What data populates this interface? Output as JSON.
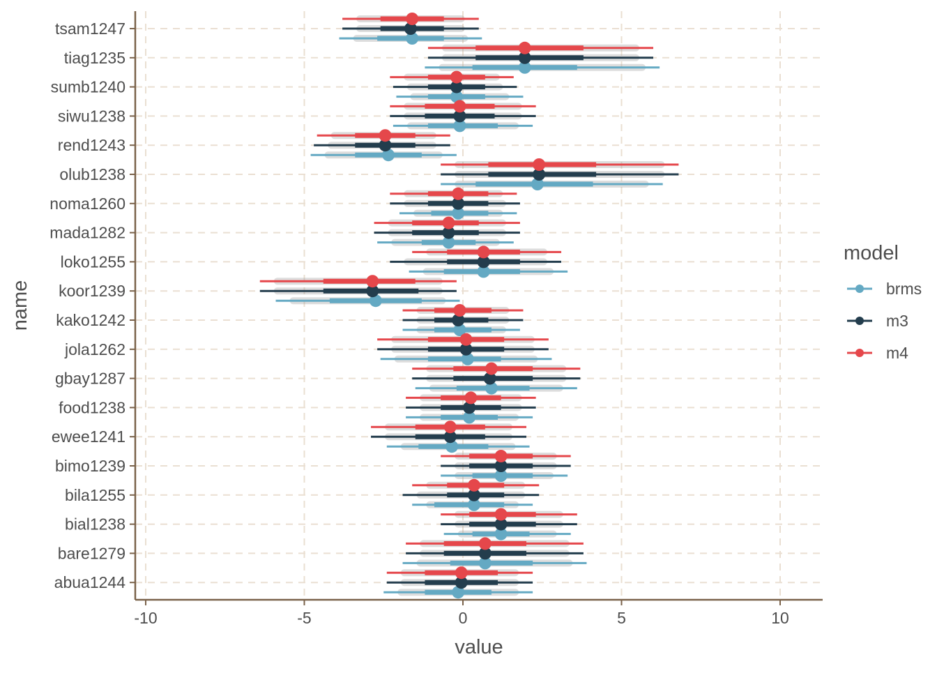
{
  "chart_data": {
    "type": "scatter",
    "xlabel": "value",
    "ylabel": "name",
    "xlim": [
      -10.4,
      11.4
    ],
    "x_ticks": [
      -10,
      -5,
      0,
      5,
      10
    ],
    "x_tick_labels": [
      "-10",
      "-5",
      "0",
      "5",
      "10"
    ],
    "categories": [
      "tsam1247",
      "tiag1235",
      "sumb1240",
      "siwu1238",
      "rend1243",
      "olub1238",
      "noma1260",
      "mada1282",
      "loko1255",
      "koor1239",
      "kako1242",
      "jola1262",
      "gbay1287",
      "food1238",
      "ewee1241",
      "bimo1239",
      "bila1255",
      "bial1238",
      "bare1279",
      "abua1244"
    ],
    "grid": "major gridlines dashed",
    "legend": {
      "title": "model",
      "position": "right",
      "entries": [
        "brms",
        "m3",
        "m4"
      ]
    },
    "interval_note": "point estimate with thick (66%) and thin (95%) intervals per model",
    "series": [
      {
        "name": "brms",
        "color": "#64a9c3",
        "points": [
          {
            "category": "tsam1247",
            "estimate": -1.6,
            "inner": [
              -2.7,
              -0.6
            ],
            "outer": [
              -3.9,
              0.6
            ]
          },
          {
            "category": "tiag1235",
            "estimate": 1.95,
            "inner": [
              0.3,
              3.6
            ],
            "outer": [
              -1.2,
              6.2
            ]
          },
          {
            "category": "sumb1240",
            "estimate": -0.2,
            "inner": [
              -1.1,
              0.7
            ],
            "outer": [
              -2.1,
              1.9
            ]
          },
          {
            "category": "siwu1238",
            "estimate": -0.1,
            "inner": [
              -1.1,
              1.1
            ],
            "outer": [
              -2.2,
              2.2
            ]
          },
          {
            "category": "rend1243",
            "estimate": -2.35,
            "inner": [
              -3.4,
              -1.3
            ],
            "outer": [
              -4.8,
              -0.2
            ]
          },
          {
            "category": "olub1238",
            "estimate": 2.35,
            "inner": [
              0.4,
              4.1
            ],
            "outer": [
              -0.7,
              6.3
            ]
          },
          {
            "category": "noma1260",
            "estimate": -0.15,
            "inner": [
              -1.0,
              0.8
            ],
            "outer": [
              -2.0,
              1.7
            ]
          },
          {
            "category": "mada1282",
            "estimate": -0.45,
            "inner": [
              -1.3,
              0.4
            ],
            "outer": [
              -2.7,
              1.6
            ]
          },
          {
            "category": "loko1255",
            "estimate": 0.65,
            "inner": [
              -0.6,
              1.8
            ],
            "outer": [
              -1.7,
              3.3
            ]
          },
          {
            "category": "koor1239",
            "estimate": -2.75,
            "inner": [
              -4.2,
              -1.3
            ],
            "outer": [
              -5.9,
              -0.1
            ]
          },
          {
            "category": "kako1242",
            "estimate": -0.1,
            "inner": [
              -0.9,
              0.9
            ],
            "outer": [
              -1.9,
              1.8
            ]
          },
          {
            "category": "jola1262",
            "estimate": 0.15,
            "inner": [
              -1.1,
              1.2
            ],
            "outer": [
              -2.6,
              2.8
            ]
          },
          {
            "category": "gbay1287",
            "estimate": 0.9,
            "inner": [
              -0.2,
              2.1
            ],
            "outer": [
              -1.5,
              3.6
            ]
          },
          {
            "category": "food1238",
            "estimate": 0.2,
            "inner": [
              -0.7,
              1.1
            ],
            "outer": [
              -1.8,
              2.2
            ]
          },
          {
            "category": "ewee1241",
            "estimate": -0.35,
            "inner": [
              -1.4,
              0.8
            ],
            "outer": [
              -2.4,
              2.1
            ]
          },
          {
            "category": "bimo1239",
            "estimate": 1.2,
            "inner": [
              0.3,
              2.2
            ],
            "outer": [
              -0.7,
              3.3
            ]
          },
          {
            "category": "bila1255",
            "estimate": 0.35,
            "inner": [
              -0.9,
              1.3
            ],
            "outer": [
              -1.6,
              2.2
            ]
          },
          {
            "category": "bial1238",
            "estimate": 1.2,
            "inner": [
              0.3,
              2.1
            ],
            "outer": [
              -0.6,
              3.4
            ]
          },
          {
            "category": "bare1279",
            "estimate": 0.7,
            "inner": [
              -0.4,
              2.2
            ],
            "outer": [
              -1.9,
              3.9
            ]
          },
          {
            "category": "abua1244",
            "estimate": -0.15,
            "inner": [
              -1.2,
              0.9
            ],
            "outer": [
              -2.5,
              2.2
            ]
          }
        ]
      },
      {
        "name": "m3",
        "color": "#233d4d",
        "points": [
          {
            "category": "tsam1247",
            "estimate": -1.65,
            "inner": [
              -2.6,
              -0.6
            ],
            "outer": [
              -3.8,
              0.5
            ]
          },
          {
            "category": "tiag1235",
            "estimate": 1.95,
            "inner": [
              0.4,
              3.8
            ],
            "outer": [
              -1.1,
              6.0
            ]
          },
          {
            "category": "sumb1240",
            "estimate": -0.2,
            "inner": [
              -1.1,
              0.7
            ],
            "outer": [
              -2.2,
              1.7
            ]
          },
          {
            "category": "siwu1238",
            "estimate": -0.1,
            "inner": [
              -1.2,
              1.0
            ],
            "outer": [
              -2.3,
              2.3
            ]
          },
          {
            "category": "rend1243",
            "estimate": -2.45,
            "inner": [
              -3.4,
              -1.5
            ],
            "outer": [
              -4.7,
              -0.4
            ]
          },
          {
            "category": "olub1238",
            "estimate": 2.4,
            "inner": [
              0.8,
              4.2
            ],
            "outer": [
              -0.7,
              6.8
            ]
          },
          {
            "category": "noma1260",
            "estimate": -0.15,
            "inner": [
              -1.1,
              0.8
            ],
            "outer": [
              -2.3,
              1.8
            ]
          },
          {
            "category": "mada1282",
            "estimate": -0.45,
            "inner": [
              -1.6,
              0.5
            ],
            "outer": [
              -2.8,
              1.8
            ]
          },
          {
            "category": "loko1255",
            "estimate": 0.65,
            "inner": [
              -0.5,
              1.8
            ],
            "outer": [
              -2.3,
              3.1
            ]
          },
          {
            "category": "koor1239",
            "estimate": -2.85,
            "inner": [
              -4.4,
              -1.4
            ],
            "outer": [
              -6.4,
              -0.2
            ]
          },
          {
            "category": "kako1242",
            "estimate": -0.15,
            "inner": [
              -0.9,
              0.8
            ],
            "outer": [
              -1.9,
              1.9
            ]
          },
          {
            "category": "jola1262",
            "estimate": 0.1,
            "inner": [
              -1.1,
              1.3
            ],
            "outer": [
              -2.7,
              2.7
            ]
          },
          {
            "category": "gbay1287",
            "estimate": 0.85,
            "inner": [
              -0.3,
              2.2
            ],
            "outer": [
              -1.6,
              3.7
            ]
          },
          {
            "category": "food1238",
            "estimate": 0.2,
            "inner": [
              -0.7,
              1.2
            ],
            "outer": [
              -1.8,
              2.3
            ]
          },
          {
            "category": "ewee1241",
            "estimate": -0.4,
            "inner": [
              -1.5,
              0.7
            ],
            "outer": [
              -2.9,
              2.0
            ]
          },
          {
            "category": "bimo1239",
            "estimate": 1.2,
            "inner": [
              0.2,
              2.2
            ],
            "outer": [
              -0.7,
              3.4
            ]
          },
          {
            "category": "bila1255",
            "estimate": 0.35,
            "inner": [
              -0.5,
              1.3
            ],
            "outer": [
              -1.9,
              2.4
            ]
          },
          {
            "category": "bial1238",
            "estimate": 1.2,
            "inner": [
              0.2,
              2.3
            ],
            "outer": [
              -0.7,
              3.6
            ]
          },
          {
            "category": "bare1279",
            "estimate": 0.7,
            "inner": [
              -0.6,
              2.0
            ],
            "outer": [
              -1.8,
              3.8
            ]
          },
          {
            "category": "abua1244",
            "estimate": -0.05,
            "inner": [
              -1.2,
              1.1
            ],
            "outer": [
              -2.4,
              2.2
            ]
          }
        ]
      },
      {
        "name": "m4",
        "color": "#e5474b",
        "points": [
          {
            "category": "tsam1247",
            "estimate": -1.6,
            "inner": [
              -2.6,
              -0.6
            ],
            "outer": [
              -3.8,
              0.5
            ]
          },
          {
            "category": "tiag1235",
            "estimate": 1.95,
            "inner": [
              0.4,
              3.8
            ],
            "outer": [
              -1.1,
              6.0
            ]
          },
          {
            "category": "sumb1240",
            "estimate": -0.2,
            "inner": [
              -1.1,
              0.7
            ],
            "outer": [
              -2.3,
              1.6
            ]
          },
          {
            "category": "siwu1238",
            "estimate": -0.1,
            "inner": [
              -1.2,
              1.0
            ],
            "outer": [
              -2.3,
              2.3
            ]
          },
          {
            "category": "rend1243",
            "estimate": -2.45,
            "inner": [
              -3.4,
              -1.5
            ],
            "outer": [
              -4.6,
              -0.4
            ]
          },
          {
            "category": "olub1238",
            "estimate": 2.4,
            "inner": [
              0.8,
              4.2
            ],
            "outer": [
              -0.7,
              6.8
            ]
          },
          {
            "category": "noma1260",
            "estimate": -0.15,
            "inner": [
              -1.1,
              0.8
            ],
            "outer": [
              -2.3,
              1.7
            ]
          },
          {
            "category": "mada1282",
            "estimate": -0.45,
            "inner": [
              -1.6,
              0.5
            ],
            "outer": [
              -2.8,
              1.8
            ]
          },
          {
            "category": "loko1255",
            "estimate": 0.65,
            "inner": [
              -0.5,
              1.8
            ],
            "outer": [
              -1.6,
              3.1
            ]
          },
          {
            "category": "koor1239",
            "estimate": -2.85,
            "inner": [
              -4.4,
              -1.5
            ],
            "outer": [
              -6.4,
              -0.2
            ]
          },
          {
            "category": "kako1242",
            "estimate": -0.1,
            "inner": [
              -0.9,
              0.9
            ],
            "outer": [
              -1.9,
              1.9
            ]
          },
          {
            "category": "jola1262",
            "estimate": 0.1,
            "inner": [
              -1.1,
              1.3
            ],
            "outer": [
              -2.7,
              2.7
            ]
          },
          {
            "category": "gbay1287",
            "estimate": 0.9,
            "inner": [
              -0.3,
              2.2
            ],
            "outer": [
              -1.6,
              3.7
            ]
          },
          {
            "category": "food1238",
            "estimate": 0.25,
            "inner": [
              -0.7,
              1.2
            ],
            "outer": [
              -1.8,
              2.3
            ]
          },
          {
            "category": "ewee1241",
            "estimate": -0.4,
            "inner": [
              -1.5,
              0.7
            ],
            "outer": [
              -2.9,
              2.0
            ]
          },
          {
            "category": "bimo1239",
            "estimate": 1.2,
            "inner": [
              0.2,
              2.2
            ],
            "outer": [
              -0.7,
              3.4
            ]
          },
          {
            "category": "bila1255",
            "estimate": 0.35,
            "inner": [
              -0.5,
              1.3
            ],
            "outer": [
              -1.6,
              2.4
            ]
          },
          {
            "category": "bial1238",
            "estimate": 1.2,
            "inner": [
              0.2,
              2.3
            ],
            "outer": [
              -0.7,
              3.6
            ]
          },
          {
            "category": "bare1279",
            "estimate": 0.7,
            "inner": [
              -0.6,
              2.0
            ],
            "outer": [
              -1.8,
              3.8
            ]
          },
          {
            "category": "abua1244",
            "estimate": -0.05,
            "inner": [
              -1.2,
              1.1
            ],
            "outer": [
              -2.4,
              2.2
            ]
          }
        ]
      }
    ]
  }
}
